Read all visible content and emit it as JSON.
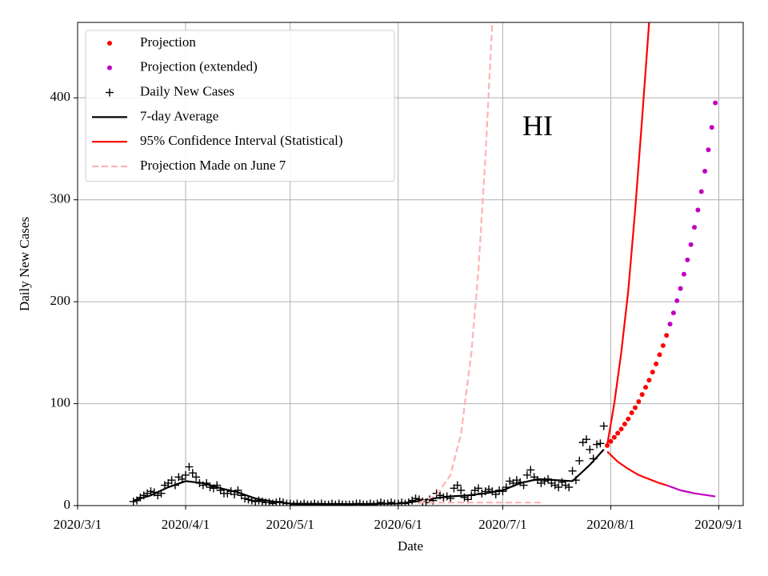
{
  "chart_data": {
    "type": "line",
    "xlabel": "Date",
    "ylabel": "Daily New Cases",
    "annotation": {
      "text": "HI",
      "x": "2020/7/11",
      "y": 370
    },
    "xlim": [
      "2020/3/1",
      "2020/9/8"
    ],
    "xticks": [
      "2020/3/1",
      "2020/4/1",
      "2020/5/1",
      "2020/6/1",
      "2020/7/1",
      "2020/8/1",
      "2020/9/1"
    ],
    "ylim": [
      0,
      474
    ],
    "yticks": [
      0,
      100,
      200,
      300,
      400
    ],
    "grid": true,
    "legend": "upper left",
    "series": [
      {
        "name": "Projection",
        "color": "#ff0000",
        "marker": "o",
        "x": [
          "2020/7/31",
          "2020/8/1",
          "2020/8/2",
          "2020/8/3",
          "2020/8/4",
          "2020/8/5",
          "2020/8/6",
          "2020/8/7",
          "2020/8/8",
          "2020/8/9",
          "2020/8/10",
          "2020/8/11",
          "2020/8/12",
          "2020/8/13",
          "2020/8/14",
          "2020/8/15",
          "2020/8/16",
          "2020/8/17"
        ],
        "values": [
          59,
          63,
          67,
          71,
          75,
          80,
          85,
          91,
          96,
          102,
          109,
          116,
          123,
          131,
          139,
          148,
          157,
          167
        ]
      },
      {
        "name": "Projection (extended)",
        "color": "#bf00bf",
        "marker": "o",
        "x": [
          "2020/8/18",
          "2020/8/19",
          "2020/8/20",
          "2020/8/21",
          "2020/8/22",
          "2020/8/23",
          "2020/8/24",
          "2020/8/25",
          "2020/8/26",
          "2020/8/27",
          "2020/8/28",
          "2020/8/29",
          "2020/8/30",
          "2020/8/31"
        ],
        "values": [
          178,
          189,
          201,
          213,
          227,
          241,
          256,
          273,
          290,
          308,
          328,
          349,
          371,
          395
        ]
      },
      {
        "name": "Daily New Cases",
        "color": "#000000",
        "marker": "+",
        "x": [
          "2020/3/17",
          "2020/3/18",
          "2020/3/19",
          "2020/3/20",
          "2020/3/21",
          "2020/3/22",
          "2020/3/23",
          "2020/3/24",
          "2020/3/25",
          "2020/3/26",
          "2020/3/27",
          "2020/3/28",
          "2020/3/29",
          "2020/3/30",
          "2020/3/31",
          "2020/4/1",
          "2020/4/2",
          "2020/4/3",
          "2020/4/4",
          "2020/4/5",
          "2020/4/6",
          "2020/4/7",
          "2020/4/8",
          "2020/4/9",
          "2020/4/10",
          "2020/4/11",
          "2020/4/12",
          "2020/4/13",
          "2020/4/14",
          "2020/4/15",
          "2020/4/16",
          "2020/4/17",
          "2020/4/18",
          "2020/4/19",
          "2020/4/20",
          "2020/4/21",
          "2020/4/22",
          "2020/4/23",
          "2020/4/24",
          "2020/4/25",
          "2020/4/26",
          "2020/4/27",
          "2020/4/28",
          "2020/4/29",
          "2020/4/30",
          "2020/5/1",
          "2020/5/2",
          "2020/5/3",
          "2020/5/4",
          "2020/5/5",
          "2020/5/6",
          "2020/5/7",
          "2020/5/8",
          "2020/5/9",
          "2020/5/10",
          "2020/5/11",
          "2020/5/12",
          "2020/5/13",
          "2020/5/14",
          "2020/5/15",
          "2020/5/16",
          "2020/5/17",
          "2020/5/18",
          "2020/5/19",
          "2020/5/20",
          "2020/5/21",
          "2020/5/22",
          "2020/5/23",
          "2020/5/24",
          "2020/5/25",
          "2020/5/26",
          "2020/5/27",
          "2020/5/28",
          "2020/5/29",
          "2020/5/30",
          "2020/5/31",
          "2020/6/1",
          "2020/6/2",
          "2020/6/3",
          "2020/6/4",
          "2020/6/5",
          "2020/6/6",
          "2020/6/7",
          "2020/6/8",
          "2020/6/9",
          "2020/6/10",
          "2020/6/11",
          "2020/6/12",
          "2020/6/13",
          "2020/6/14",
          "2020/6/15",
          "2020/6/16",
          "2020/6/17",
          "2020/6/18",
          "2020/6/19",
          "2020/6/20",
          "2020/6/21",
          "2020/6/22",
          "2020/6/23",
          "2020/6/24",
          "2020/6/25",
          "2020/6/26",
          "2020/6/27",
          "2020/6/28",
          "2020/6/29",
          "2020/6/30",
          "2020/7/1",
          "2020/7/2",
          "2020/7/3",
          "2020/7/4",
          "2020/7/5",
          "2020/7/6",
          "2020/7/7",
          "2020/7/8",
          "2020/7/9",
          "2020/7/10",
          "2020/7/11",
          "2020/7/12",
          "2020/7/13",
          "2020/7/14",
          "2020/7/15",
          "2020/7/16",
          "2020/7/17",
          "2020/7/18",
          "2020/7/19",
          "2020/7/20",
          "2020/7/21",
          "2020/7/22",
          "2020/7/23",
          "2020/7/24",
          "2020/7/25",
          "2020/7/26",
          "2020/7/27",
          "2020/7/28",
          "2020/7/29",
          "2020/7/30"
        ],
        "values": [
          4,
          5,
          8,
          10,
          12,
          14,
          13,
          10,
          12,
          20,
          22,
          25,
          20,
          28,
          26,
          30,
          38,
          32,
          28,
          22,
          20,
          22,
          18,
          17,
          20,
          15,
          12,
          12,
          14,
          11,
          15,
          10,
          7,
          6,
          5,
          4,
          5,
          4,
          3,
          3,
          2,
          3,
          4,
          3,
          2,
          2,
          1,
          2,
          1,
          2,
          1,
          1,
          2,
          1,
          2,
          1,
          1,
          2,
          1,
          2,
          1,
          1,
          1,
          1,
          2,
          2,
          1,
          1,
          2,
          1,
          2,
          3,
          2,
          2,
          3,
          2,
          2,
          3,
          2,
          3,
          5,
          7,
          6,
          4,
          3,
          6,
          5,
          12,
          10,
          8,
          9,
          7,
          17,
          20,
          15,
          8,
          6,
          10,
          15,
          17,
          12,
          14,
          16,
          14,
          11,
          15,
          14,
          18,
          24,
          22,
          25,
          23,
          20,
          30,
          35,
          28,
          25,
          22,
          24,
          26,
          22,
          20,
          18,
          23,
          20,
          18,
          34,
          25,
          44,
          62,
          65,
          55,
          46,
          60,
          61,
          78
        ]
      },
      {
        "name": "7-day Average",
        "color": "#000000",
        "linestyle": "-",
        "x": [
          "2020/3/17",
          "2020/3/22",
          "2020/3/27",
          "2020/4/1",
          "2020/4/6",
          "2020/4/11",
          "2020/4/16",
          "2020/4/21",
          "2020/4/26",
          "2020/5/1",
          "2020/5/11",
          "2020/5/21",
          "2020/6/1",
          "2020/6/6",
          "2020/6/11",
          "2020/6/16",
          "2020/6/21",
          "2020/6/26",
          "2020/7/1",
          "2020/7/6",
          "2020/7/11",
          "2020/7/16",
          "2020/7/21",
          "2020/7/26",
          "2020/7/30"
        ],
        "values": [
          5,
          10,
          18,
          24,
          22,
          17,
          13,
          7,
          4,
          2,
          1.5,
          1.5,
          2,
          4,
          7,
          9,
          10,
          12,
          15,
          22,
          26,
          25,
          24,
          40,
          55
        ]
      },
      {
        "name": "95% Confidence Interval (Statistical)",
        "color": "#ff0000",
        "linestyle": "-",
        "x": [
          "2020/7/31",
          "2020/8/2",
          "2020/8/4",
          "2020/8/6",
          "2020/8/8",
          "2020/8/10",
          "2020/8/12"
        ],
        "values": [
          60,
          100,
          150,
          210,
          290,
          380,
          474
        ]
      },
      {
        "color": "#ff0000",
        "linestyle": "-",
        "x": [
          "2020/7/31",
          "2020/8/3",
          "2020/8/6",
          "2020/8/9",
          "2020/8/12",
          "2020/8/15",
          "2020/8/17"
        ],
        "values": [
          53,
          43,
          36,
          30,
          26,
          22,
          20
        ]
      },
      {
        "color": "#bf00bf",
        "linestyle": "-",
        "x": [
          "2020/8/17",
          "2020/8/21",
          "2020/8/25",
          "2020/8/31"
        ],
        "values": [
          20,
          15,
          12,
          9
        ]
      },
      {
        "name": "Projection Made on June 7",
        "color": "#ffb3b3",
        "linestyle": "--",
        "x": [
          "2020/6/7",
          "2020/6/12",
          "2020/6/16",
          "2020/6/19",
          "2020/6/22",
          "2020/6/24",
          "2020/6/26",
          "2020/6/28"
        ],
        "values": [
          3,
          10,
          30,
          70,
          150,
          230,
          340,
          474
        ]
      },
      {
        "color": "#ffb3b3",
        "linestyle": "--",
        "x": [
          "2020/6/7",
          "2020/7/12"
        ],
        "values": [
          3,
          3
        ]
      }
    ]
  }
}
